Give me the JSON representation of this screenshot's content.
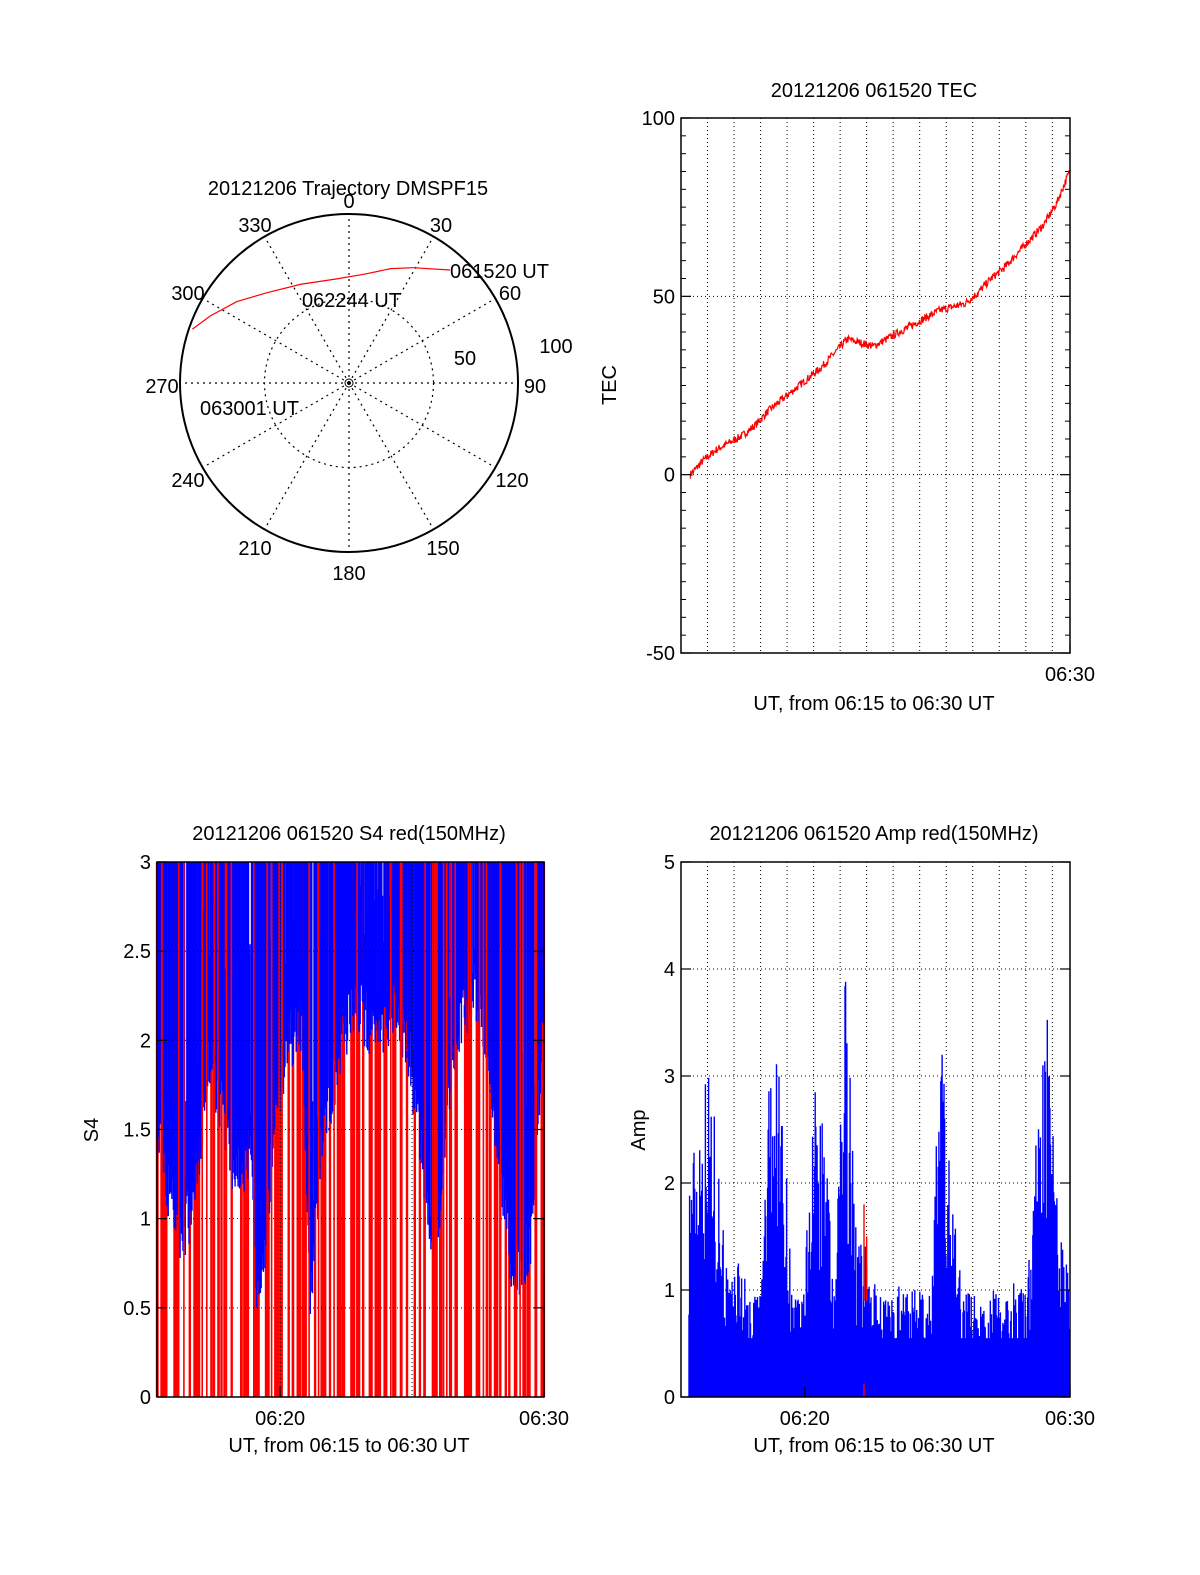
{
  "colors": {
    "series_red": "#ff0000",
    "series_blue": "#0000ff",
    "axis": "#000000",
    "grid": "#000000"
  },
  "chart_data": [
    {
      "id": "polar",
      "type": "scatter",
      "title": "20121206 Trajectory DMSPF15",
      "coordinate_system": "polar (azimuth degrees clockwise from north, zenith angle radius)",
      "azimuth_labels": [
        "0",
        "30",
        "60",
        "90",
        "120",
        "150",
        "180",
        "210",
        "240",
        "270",
        "300",
        "330"
      ],
      "radius_labels": [
        "50",
        "100"
      ],
      "rlim": [
        0,
        100
      ],
      "grid": true,
      "series": [
        {
          "color": "#ff0000",
          "points": [
            {
              "azimuth": 29,
              "zenith": 78
            },
            {
              "azimuth": 20,
              "zenith": 72
            },
            {
              "azimuth": 8,
              "zenith": 65
            },
            {
              "azimuth": -8,
              "zenith": 62
            },
            {
              "azimuth": -26,
              "zenith": 65
            },
            {
              "azimuth": -42,
              "zenith": 72
            },
            {
              "azimuth": -54,
              "zenith": 82
            },
            {
              "azimuth": -64,
              "zenith": 91
            },
            {
              "azimuth": -71,
              "zenith": 98
            }
          ]
        }
      ],
      "annotations": [
        {
          "text": "061520 UT",
          "azimuth": 32,
          "zenith": 90
        },
        {
          "text": "062244 UT",
          "azimuth": 1,
          "zenith": 55
        },
        {
          "text": "063001 UT",
          "azimuth": -75,
          "zenith": 77
        }
      ]
    },
    {
      "id": "tec",
      "type": "line",
      "title": "20121206 061520 TEC",
      "ylabel": "TEC",
      "xlabel": "UT, from 06:15 to 06:30 UT",
      "ylim": [
        -50,
        100
      ],
      "xlim": [
        "06:15:20",
        "06:30:00"
      ],
      "yticks": [
        -50,
        0,
        50,
        100
      ],
      "xticks": [
        "06:30"
      ],
      "grid": "dotted vertical",
      "series": [
        {
          "color": "#ff0000",
          "x": [
            "06:15:20",
            "06:15:50",
            "06:16:20",
            "06:16:50",
            "06:17:20",
            "06:17:50",
            "06:18:20",
            "06:18:50",
            "06:19:20",
            "06:19:50",
            "06:20:20",
            "06:20:50",
            "06:21:20",
            "06:21:50",
            "06:22:20",
            "06:22:50",
            "06:23:20",
            "06:23:50",
            "06:24:20",
            "06:24:50",
            "06:25:20",
            "06:25:50",
            "06:26:20",
            "06:26:50",
            "06:27:20",
            "06:27:50",
            "06:28:20",
            "06:28:50",
            "06:29:20",
            "06:29:50"
          ],
          "values": [
            0,
            4,
            7,
            9,
            11,
            14,
            18,
            21,
            24,
            27,
            30,
            34,
            38,
            37,
            36,
            38,
            40,
            42,
            44,
            46,
            47,
            48,
            51,
            55,
            58,
            62,
            66,
            70,
            76,
            85
          ]
        }
      ]
    },
    {
      "id": "s4",
      "type": "line",
      "title": "20121206 061520 S4 red(150MHz)",
      "ylabel": "S4",
      "xlabel": "UT, from 06:15 to 06:30 UT",
      "ylim": [
        0,
        3
      ],
      "xlim": [
        "06:15:20",
        "06:30:00"
      ],
      "yticks": [
        "0",
        "0.5",
        "1",
        "1.5",
        "2",
        "2.5",
        "3"
      ],
      "xticks": [
        "06:20",
        "06:30"
      ],
      "grid": "dotted",
      "series": [
        {
          "color": "#0000ff",
          "description_values": "S4 floor level over time (clipped at 3)",
          "x_minutes": [
            0.0,
            0.5,
            0.9,
            1.2,
            1.6,
            2.0,
            2.5,
            3.0,
            3.5,
            3.8,
            4.0,
            4.5,
            5.0,
            5.5,
            5.8,
            6.2,
            6.6,
            7.0,
            7.5,
            8.0,
            8.5,
            9.0,
            9.5,
            10.0,
            10.5,
            11.0,
            11.5,
            12.0,
            12.5,
            13.0,
            13.4,
            13.8,
            14.2,
            14.67
          ],
          "values": [
            1.6,
            1.1,
            0.9,
            1.0,
            1.3,
            1.9,
            1.6,
            1.2,
            1.4,
            0.6,
            0.7,
            1.6,
            2.0,
            2.1,
            0.5,
            1.4,
            1.7,
            2.0,
            2.2,
            2.1,
            2.0,
            2.2,
            2.0,
            1.4,
            0.7,
            1.6,
            2.1,
            2.3,
            2.0,
            1.3,
            0.8,
            0.7,
            0.9,
            2.2
          ]
        },
        {
          "color": "#ff0000",
          "description_values": "dense vertical spikes spanning full range"
        }
      ]
    },
    {
      "id": "amp",
      "type": "bar",
      "title": "20121206 061520 Amp red(150MHz)",
      "ylabel": "Amp",
      "xlabel": "UT, from 06:15 to 06:30 UT",
      "ylim": [
        0,
        5
      ],
      "xlim": [
        "06:15:20",
        "06:30:00"
      ],
      "yticks": [
        0,
        1,
        2,
        3,
        4,
        5
      ],
      "xticks": [
        "06:20",
        "06:30"
      ],
      "grid": "dotted",
      "series": [
        {
          "color": "#0000ff",
          "envelope_minutes": [
            0.0,
            0.3,
            0.6,
            1.0,
            1.4,
            1.8,
            2.2,
            2.6,
            3.0,
            3.4,
            3.8,
            4.2,
            4.6,
            5.0,
            5.4,
            5.8,
            6.2,
            6.6,
            7.0,
            7.4,
            7.8,
            8.2,
            8.6,
            9.0,
            9.4,
            9.8,
            10.2,
            10.6,
            11.0,
            11.4,
            11.8,
            12.2,
            12.6,
            13.0,
            13.4,
            13.8,
            14.2,
            14.67
          ],
          "envelope_values": [
            1.0,
            2.2,
            2.6,
            3.2,
            2.4,
            1.0,
            1.4,
            0.9,
            1.1,
            3.4,
            3.0,
            1.0,
            0.9,
            2.9,
            2.6,
            0.9,
            4.2,
            1.6,
            1.4,
            1.0,
            0.9,
            1.1,
            1.0,
            1.0,
            1.0,
            3.5,
            2.0,
            1.1,
            1.0,
            0.9,
            1.0,
            1.0,
            1.1,
            1.0,
            2.5,
            3.6,
            2.0,
            1.0
          ]
        },
        {
          "color": "#ff0000",
          "peaks": [
            {
              "minute": 6.9,
              "value": 1.8
            },
            {
              "minute": 7.0,
              "value": 1.5
            }
          ]
        }
      ]
    }
  ]
}
